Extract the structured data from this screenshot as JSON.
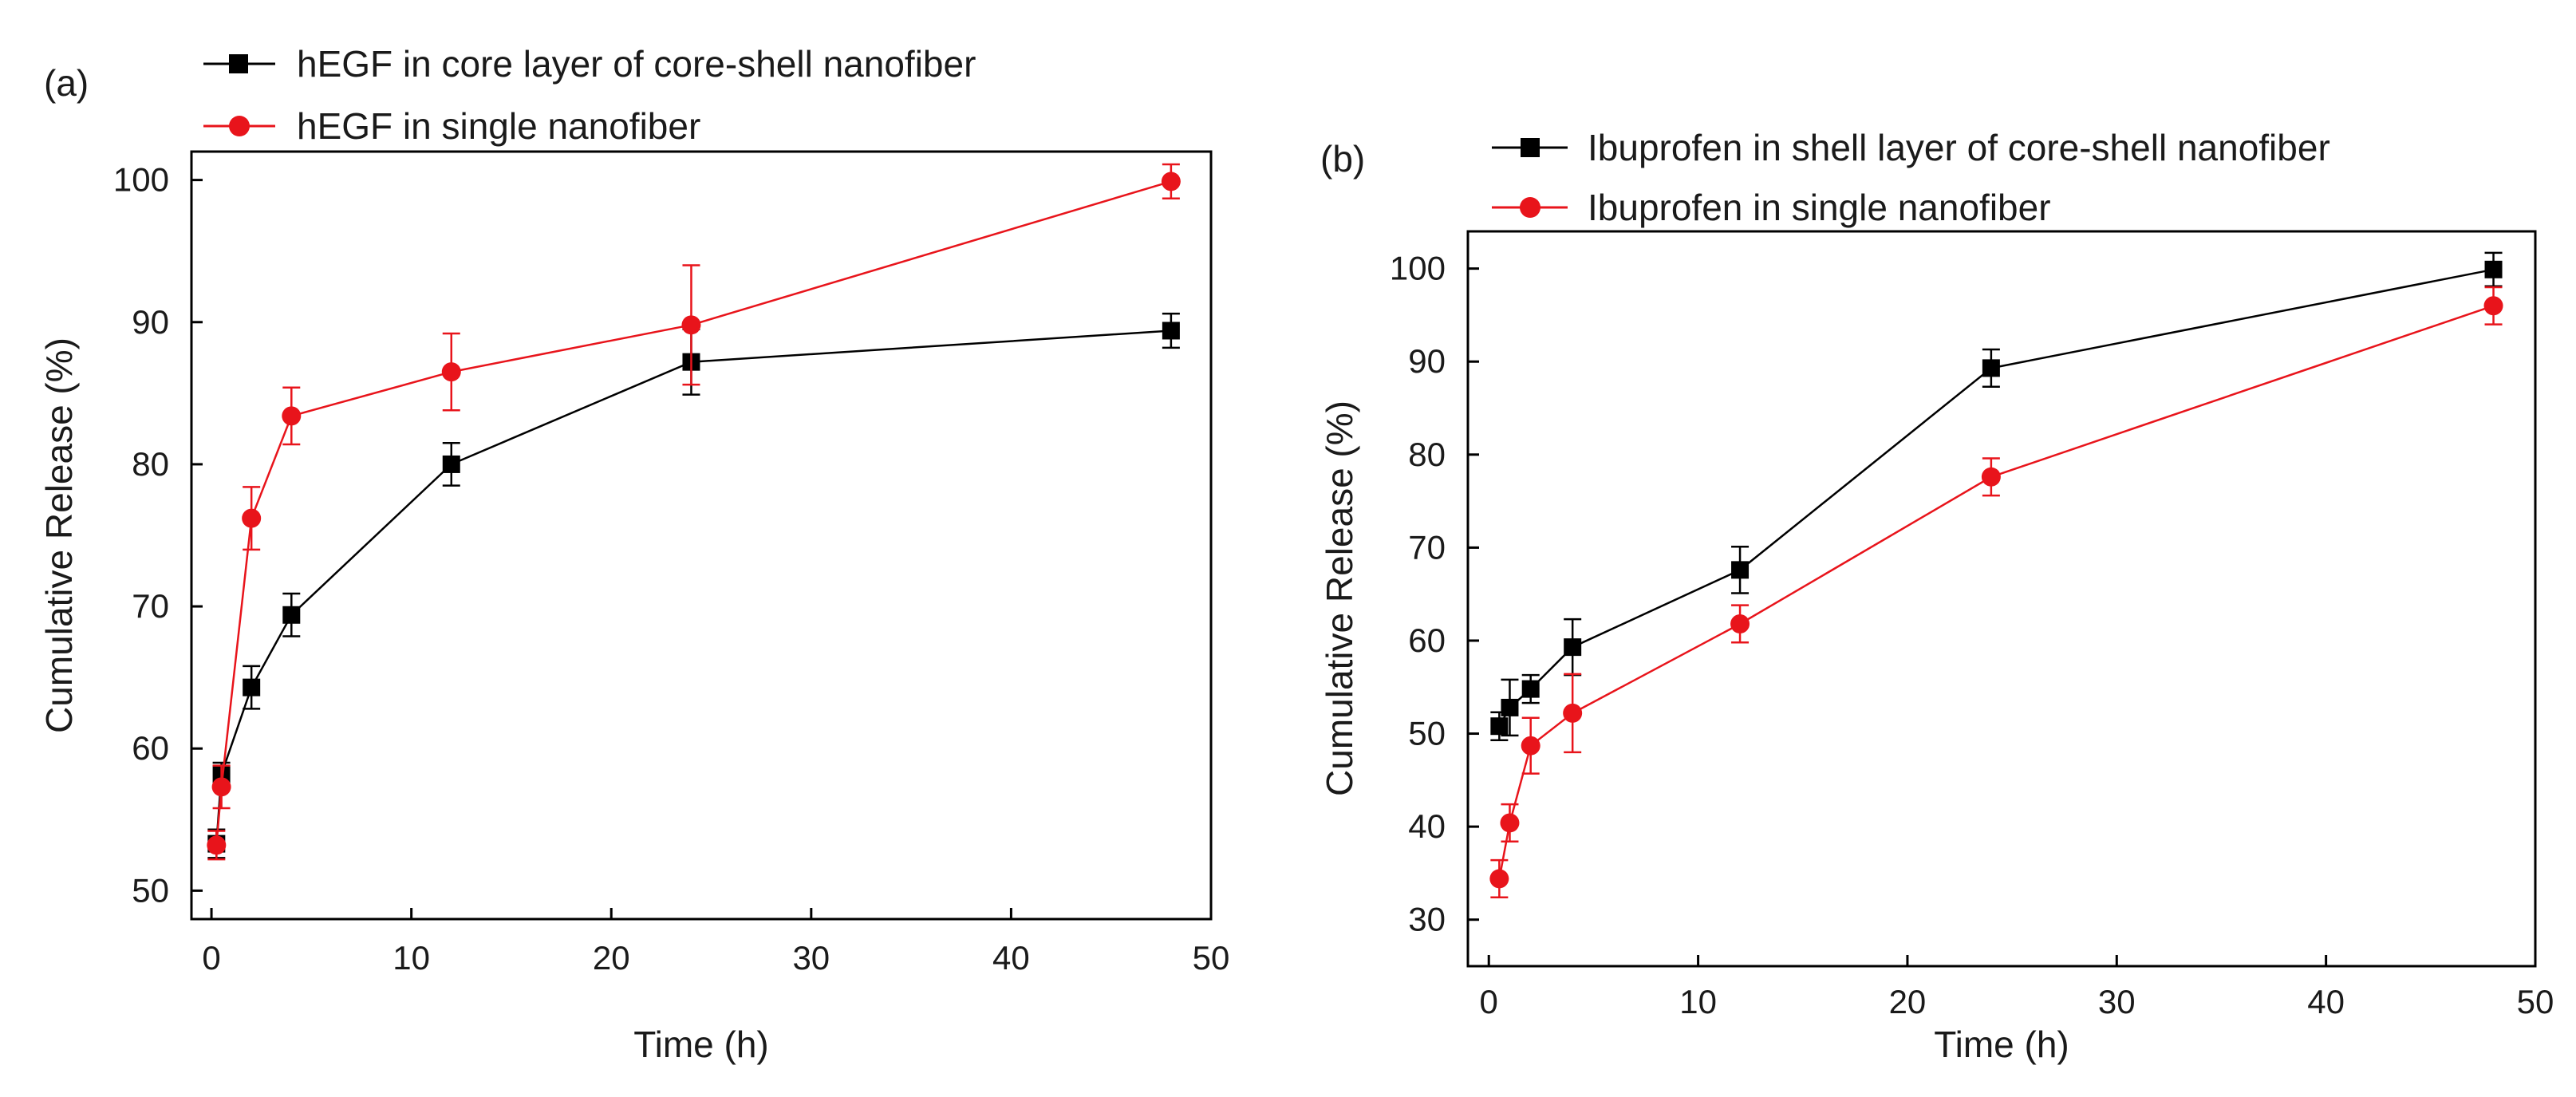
{
  "chart_data": [
    {
      "type": "line",
      "panel_label": "(a)",
      "xlabel": "Time (h)",
      "ylabel": "Cumulative Release (%)",
      "xlim": [
        -1,
        50
      ],
      "ylim": [
        48,
        102
      ],
      "xticks": [
        0,
        10,
        20,
        30,
        40,
        50
      ],
      "yticks": [
        50,
        60,
        70,
        80,
        90,
        100
      ],
      "legend_position": "top-left, outside plot area",
      "series": [
        {
          "name": "hEGF in core layer of core-shell nanofiber",
          "color": "#000000",
          "marker": "square",
          "x": [
            0.25,
            0.5,
            2,
            4,
            12,
            24,
            48
          ],
          "y": [
            53.3,
            58.2,
            64.3,
            69.4,
            80.0,
            87.2,
            89.4
          ],
          "err": [
            1.0,
            0.8,
            1.5,
            1.5,
            1.5,
            2.3,
            1.2
          ]
        },
        {
          "name": "hEGF in single nanofiber",
          "color": "#e8141b",
          "marker": "circle",
          "x": [
            0.25,
            0.5,
            2,
            4,
            12,
            24,
            48
          ],
          "y": [
            53.2,
            57.3,
            76.2,
            83.4,
            86.5,
            89.8,
            99.9
          ],
          "err": [
            1.0,
            1.5,
            2.2,
            2.0,
            2.7,
            4.2,
            1.2
          ]
        }
      ]
    },
    {
      "type": "line",
      "panel_label": "(b)",
      "xlabel": "Time (h)",
      "ylabel": "Cumulative Release (%)",
      "xlim": [
        -1,
        50
      ],
      "ylim": [
        25,
        104
      ],
      "xticks": [
        0,
        10,
        20,
        30,
        40,
        50
      ],
      "yticks": [
        30,
        40,
        50,
        60,
        70,
        80,
        90,
        100
      ],
      "legend_position": "top-left, outside plot area",
      "series": [
        {
          "name": "Ibuprofen in shell layer of core-shell nanofiber",
          "color": "#000000",
          "marker": "square",
          "x": [
            0.5,
            1,
            2,
            4,
            12,
            24,
            48
          ],
          "y": [
            50.8,
            52.8,
            54.8,
            59.3,
            67.6,
            89.3,
            99.9
          ],
          "err": [
            1.5,
            3.0,
            1.5,
            3.0,
            2.5,
            2.0,
            1.8
          ]
        },
        {
          "name": "Ibuprofen in single nanofiber",
          "color": "#e8141b",
          "marker": "circle",
          "x": [
            0.5,
            1,
            2,
            4,
            12,
            24,
            48
          ],
          "y": [
            34.4,
            40.4,
            48.7,
            52.2,
            61.8,
            77.6,
            96.0
          ],
          "err": [
            2.0,
            2.0,
            3.0,
            4.2,
            2.0,
            2.0,
            2.0
          ]
        }
      ]
    }
  ]
}
